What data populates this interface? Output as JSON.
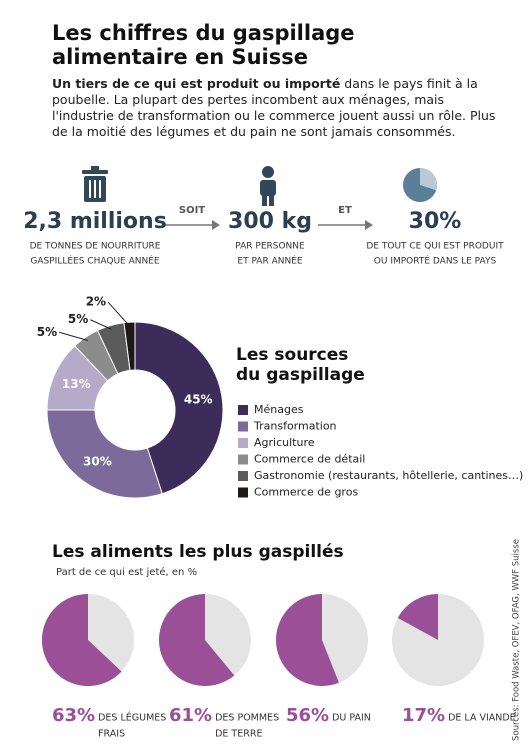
{
  "header": {
    "title_lines": [
      "Les chiffres du gaspillage",
      "alimentaire en Suisse"
    ],
    "intro_bold": "Un tiers de ce qui est produit ou importé",
    "intro_text": " dans le pays finit à la poubelle. La plupart des pertes incombent aux ménages, mais l'industrie de transformation ou le commerce jouent aussi un rôle. Plus de la moitié des légumes et du pain ne sont jamais consommés."
  },
  "stats": [
    {
      "value": "2,3 millions",
      "label_lines": [
        "DE TONNES DE NOURRITURE",
        "GASPILLÉES CHAQUE ANNÉE"
      ]
    },
    {
      "value": "300 kg",
      "label_lines": [
        "PAR PERSONNE",
        "ET PAR ANNÉE"
      ]
    },
    {
      "value": "30%",
      "label_lines": [
        "DE TOUT CE QUI EST PRODUIT",
        "OU IMPORTÉ DANS LE PAYS"
      ]
    }
  ],
  "connectors": [
    "SOIT",
    "ET"
  ],
  "chart_data": {
    "type": "donut",
    "title": [
      "Les sources",
      "du gaspillage"
    ],
    "categories": [
      "Ménages",
      "Transformation",
      "Agriculture",
      "Commerce de détail",
      "Gastronomie (restaurants, hôtellerie, cantines…)",
      "Commerce de gros"
    ],
    "values": [
      45,
      30,
      13,
      5,
      5,
      2
    ],
    "value_labels": [
      "45%",
      "30%",
      "13%",
      "5%",
      "5%",
      "2%"
    ],
    "colors": [
      "#3b2c5a",
      "#7b6a9a",
      "#b5abc9",
      "#8c8c8c",
      "#5b5b5b",
      "#1e1916"
    ]
  },
  "foods": {
    "title": "Les aliments les plus gaspillés",
    "subtitle": "Part de ce qui est jeté, en %",
    "color": "#9b4f96",
    "items": [
      {
        "value": 63,
        "value_label": "63%",
        "label_lines": [
          "DES LÉGUMES",
          "FRAIS"
        ]
      },
      {
        "value": 61,
        "value_label": "61%",
        "label_lines": [
          "DES POMMES",
          "DE TERRE"
        ]
      },
      {
        "value": 56,
        "value_label": "56%",
        "label_lines": [
          "DU PAIN"
        ]
      },
      {
        "value": 17,
        "value_label": "17%",
        "label_lines": [
          "DE LA VIANDE"
        ]
      }
    ]
  },
  "source": "Sources: Food Waste, OFEV, OFAG, WWF Suisse"
}
